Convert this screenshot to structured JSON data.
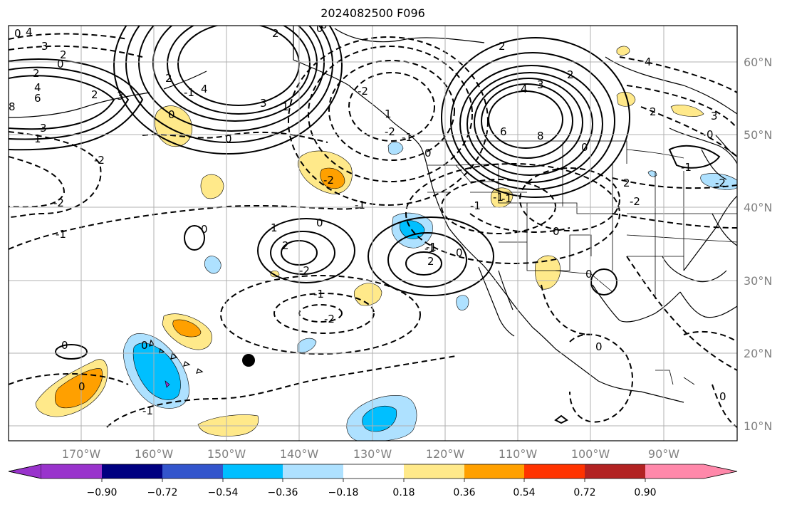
{
  "title": "2024082500 F096",
  "map": {
    "lon_labels": [
      "170°W",
      "160°W",
      "150°W",
      "140°W",
      "130°W",
      "120°W",
      "110°W",
      "100°W",
      "90°W"
    ],
    "lat_labels": [
      "60°N",
      "50°N",
      "40°N",
      "30°N",
      "20°N",
      "10°N"
    ],
    "contour_labels": [
      "4",
      "3",
      "2",
      "2",
      "0",
      "0",
      "4",
      "6",
      "8",
      "3",
      "2",
      "1",
      "2",
      "0",
      "3",
      "4",
      "2",
      "1",
      "3",
      "0",
      "-1",
      "-2",
      "0",
      "4",
      "3",
      "6",
      "8",
      "2",
      "2",
      "3",
      "4",
      "0",
      "0",
      "2",
      "0",
      "-2",
      "-1",
      "-2",
      "-1",
      "0",
      "-1",
      "-2",
      "-1",
      "0",
      "-2",
      "-1",
      "0",
      "-1",
      "0",
      "1",
      "2",
      "2",
      "-1",
      "0",
      "2",
      "0",
      "-1",
      "-2",
      "-1",
      "-2",
      "0",
      "0",
      "0",
      "-1",
      "0",
      "1",
      "-2",
      "-2",
      "-1",
      "0"
    ],
    "colors": {
      "land": "#000000",
      "grid": "#b0b0b0",
      "contour": "#000000"
    }
  },
  "colorbar": {
    "ticks": [
      "−0.90",
      "−0.72",
      "−0.54",
      "−0.36",
      "−0.18",
      "0.18",
      "0.36",
      "0.54",
      "0.72",
      "0.90"
    ],
    "colors": [
      "#9933cc",
      "#000080",
      "#3355cc",
      "#00bfff",
      "#aee1ff",
      "#ffffff",
      "#ffe98a",
      "#ffa000",
      "#ff3300",
      "#b22222",
      "#ff88aa"
    ]
  }
}
